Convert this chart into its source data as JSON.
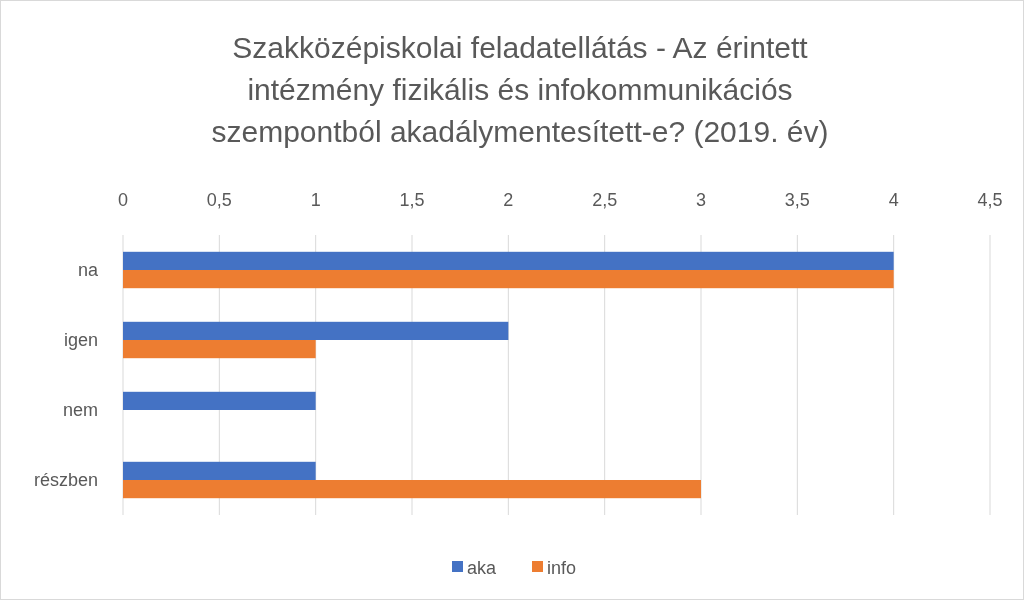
{
  "chart_data": {
    "type": "bar",
    "orientation": "horizontal",
    "title": "Szakközépiskolai feladatellátás - Az érintett intézmény fizikális és infokommunikációs szempontból akadálymentesített-e? (2019. év)",
    "categories": [
      "na",
      "igen",
      "nem",
      "részben"
    ],
    "series": [
      {
        "name": "aka",
        "color": "#4472c4",
        "values": [
          4,
          2,
          1,
          1
        ]
      },
      {
        "name": "info",
        "color": "#ed7d31",
        "values": [
          4,
          1,
          0,
          3
        ]
      }
    ],
    "xlim": [
      0,
      4.5
    ],
    "xticks": [
      0,
      {
        "value": 0.5,
        "label": "0,5"
      },
      1,
      {
        "value": 1.5,
        "label": "1,5"
      },
      2,
      {
        "value": 2.5,
        "label": "2,5"
      },
      3,
      {
        "value": 3.5,
        "label": "3,5"
      },
      4,
      {
        "value": 4.5,
        "label": "4,5"
      }
    ],
    "grid": "x",
    "legend": "bottom"
  }
}
